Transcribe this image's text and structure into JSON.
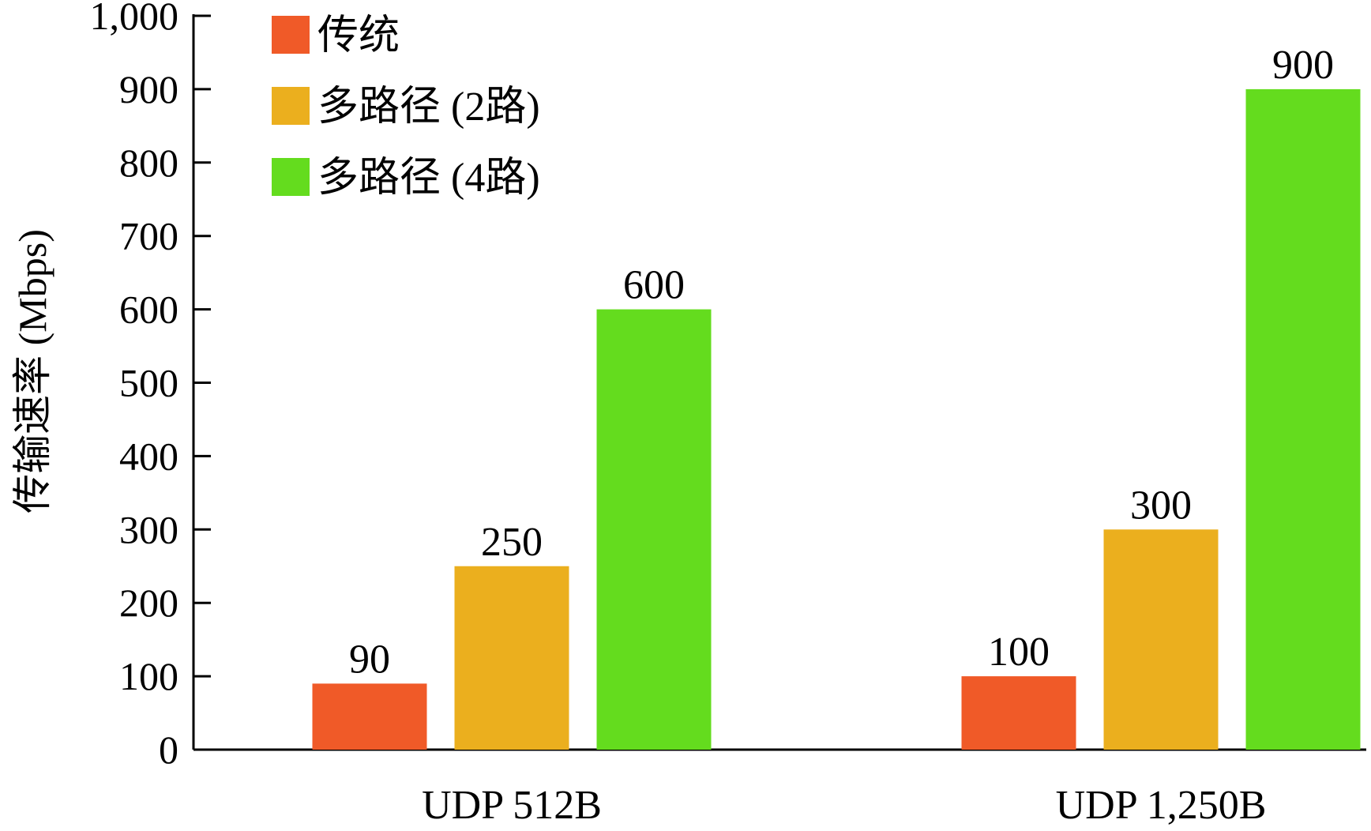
{
  "chart_data": {
    "type": "bar",
    "ylabel": "传输速率 (Mbps)",
    "ylim": [
      0,
      1000
    ],
    "yticks": [
      0,
      100,
      200,
      300,
      400,
      500,
      600,
      700,
      800,
      900,
      1000
    ],
    "ytick_labels": [
      "0",
      "100",
      "200",
      "300",
      "400",
      "500",
      "600",
      "700",
      "800",
      "900",
      "1,000"
    ],
    "categories": [
      "UDP 512B",
      "UDP 1,250B"
    ],
    "series": [
      {
        "name": "传统",
        "color": "#f05a28",
        "values": [
          90,
          100
        ]
      },
      {
        "name": "多路径 (2路)",
        "color": "#ebaf1e",
        "values": [
          250,
          300
        ]
      },
      {
        "name": "多路径 (4路)",
        "color": "#64dc1e",
        "values": [
          600,
          900
        ]
      }
    ],
    "data_labels": [
      [
        "90",
        "100"
      ],
      [
        "250",
        "300"
      ],
      [
        "600",
        "900"
      ]
    ],
    "legend_position": "top-left",
    "grid": false
  }
}
